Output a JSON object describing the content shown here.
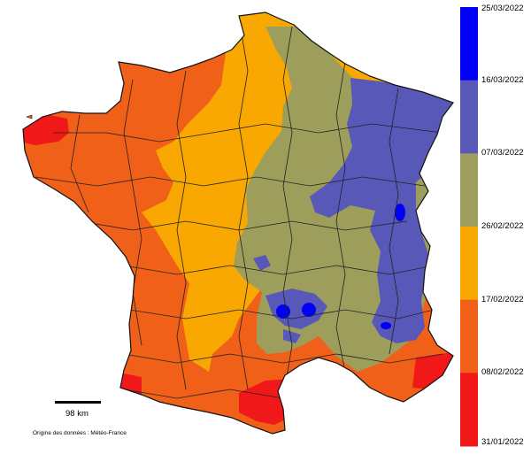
{
  "legend": {
    "colors": [
      "#0000f5",
      "#5858b8",
      "#9e9e5c",
      "#f8a800",
      "#f06018",
      "#f01818"
    ],
    "dates": [
      "25/03/2022",
      "16/03/2022",
      "07/03/2022",
      "26/02/2022",
      "17/02/2022",
      "08/02/2022",
      "31/01/2022"
    ]
  },
  "scale": {
    "label": "98 km"
  },
  "credit": "Origine des données : Météo-France"
}
